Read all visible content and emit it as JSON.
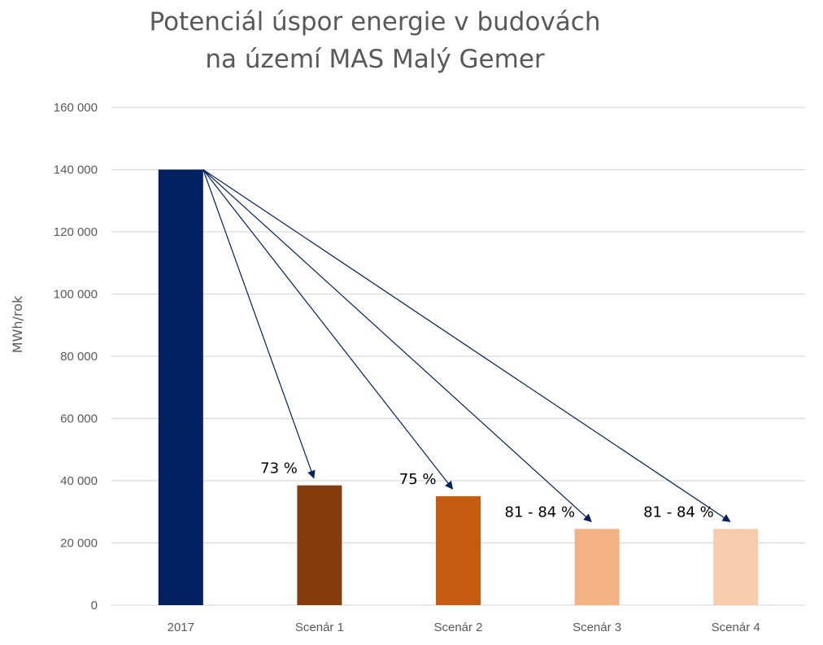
{
  "chart_data": {
    "type": "bar",
    "title": [
      "Potenciál úspor energie v budovách",
      "na území MAS Malý Gemer"
    ],
    "ylabel": "MWh/rok",
    "xlabel": "",
    "categories": [
      "2017",
      "Scenár 1",
      "Scenár 2",
      "Scenár 3",
      "Scenár 4"
    ],
    "values": [
      140000,
      38500,
      35000,
      24500,
      24500
    ],
    "colors": [
      "#002060",
      "#843C0C",
      "#C55A11",
      "#F4B183",
      "#F8CBAD"
    ],
    "ylim": [
      0,
      160000
    ],
    "yticks": [
      0,
      20000,
      40000,
      60000,
      80000,
      100000,
      120000,
      140000,
      160000
    ],
    "ytick_labels": [
      "0",
      "20 000",
      "40 000",
      "60 000",
      "80 000",
      "100 000",
      "120 000",
      "140 000",
      "160 000"
    ],
    "grid": true,
    "legend": "none",
    "annotations": [
      {
        "text": "73 %",
        "target": "Scenár 1"
      },
      {
        "text": "75 %",
        "target": "Scenár 2"
      },
      {
        "text": "81 - 84 %",
        "target": "Scenár 3"
      },
      {
        "text": "81 - 84 %",
        "target": "Scenár 4"
      }
    ],
    "arrow_color": "#002060",
    "grid_color": "#D9D9D9"
  }
}
